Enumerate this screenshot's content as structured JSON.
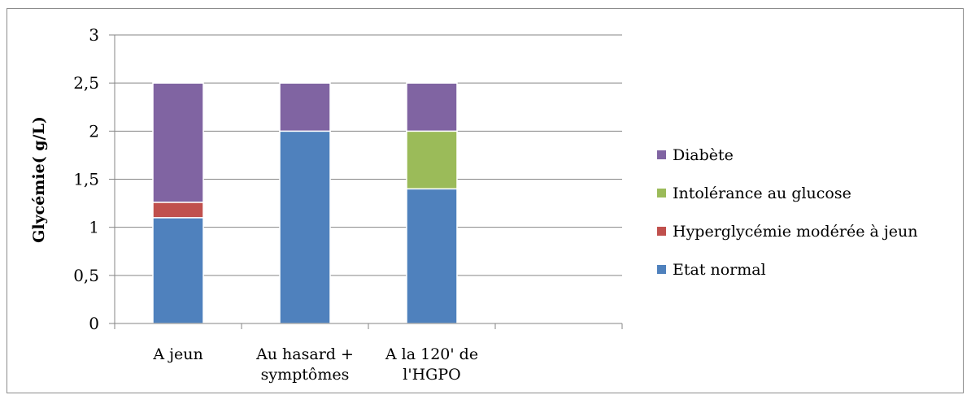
{
  "chart_data": {
    "type": "bar",
    "stacked": true,
    "categories": [
      [
        "A jeun"
      ],
      [
        "Au hasard +",
        "symptômes"
      ],
      [
        "A la 120' de",
        "l'HGPO"
      ],
      [
        ""
      ]
    ],
    "series": [
      {
        "name": "Etat normal",
        "color": "#4f81bd",
        "values": [
          1.1,
          2.0,
          1.4,
          0
        ]
      },
      {
        "name": "Hyperglycémie modérée à jeun",
        "color": "#c0504d",
        "values": [
          0.16,
          0,
          0,
          0
        ]
      },
      {
        "name": "Intolérance au glucose",
        "color": "#9bbb59",
        "values": [
          0,
          0,
          0.6,
          0
        ]
      },
      {
        "name": "Diabète",
        "color": "#8064a2",
        "values": [
          1.24,
          0.5,
          0.5,
          0
        ]
      }
    ],
    "legend_order": [
      "Diabète",
      "Intolérance au glucose",
      "Hyperglycémie modérée à jeun",
      "Etat normal"
    ],
    "ylabel": "Glycémie( g/L)",
    "xlabel": "",
    "ylim": [
      0,
      3
    ],
    "yticks": [
      0,
      0.5,
      1,
      1.5,
      2,
      2.5,
      3
    ],
    "ytick_labels": [
      "0",
      "0,5",
      "1",
      "1,5",
      "2",
      "2,5",
      "3"
    ],
    "grid": true,
    "legend_position": "right"
  }
}
